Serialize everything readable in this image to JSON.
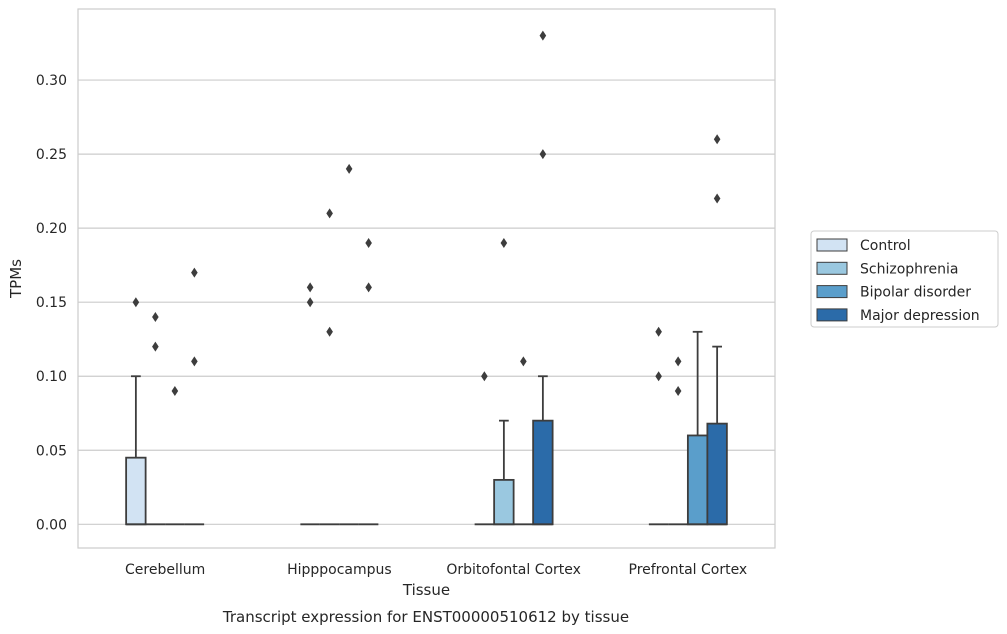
{
  "chart_data": {
    "type": "box",
    "title": "",
    "caption": "Transcript expression for ENST00000510612 by tissue",
    "xlabel": "Tissue",
    "ylabel": "TPMs",
    "ylim": [
      -0.016,
      0.348
    ],
    "yticks": [
      0.0,
      0.05,
      0.1,
      0.15,
      0.2,
      0.25,
      0.3
    ],
    "ytick_labels": [
      "0.00",
      "0.05",
      "0.10",
      "0.15",
      "0.20",
      "0.25",
      "0.30"
    ],
    "grid": "horizontal",
    "legend_position": "right",
    "categories": [
      "Cerebellum",
      "Hipppocampus",
      "Orbitofontal Cortex",
      "Prefrontal Cortex"
    ],
    "series": [
      {
        "name": "Control",
        "color": "#d2e3f3",
        "boxes": [
          {
            "q1": 0.0,
            "median": 0.0,
            "q3": 0.045,
            "whisker_low": 0.0,
            "whisker_high": 0.1,
            "outliers": [
              0.15
            ]
          },
          {
            "q1": 0.0,
            "median": 0.0,
            "q3": 0.0,
            "whisker_low": 0.0,
            "whisker_high": 0.0,
            "outliers": [
              0.16,
              0.15
            ]
          },
          {
            "q1": 0.0,
            "median": 0.0,
            "q3": 0.0,
            "whisker_low": 0.0,
            "whisker_high": 0.0,
            "outliers": [
              0.1
            ]
          },
          {
            "q1": 0.0,
            "median": 0.0,
            "q3": 0.0,
            "whisker_low": 0.0,
            "whisker_high": 0.0,
            "outliers": [
              0.13,
              0.1
            ]
          }
        ]
      },
      {
        "name": "Schizophrenia",
        "color": "#9ac8e0",
        "boxes": [
          {
            "q1": 0.0,
            "median": 0.0,
            "q3": 0.0,
            "whisker_low": 0.0,
            "whisker_high": 0.0,
            "outliers": [
              0.14,
              0.12
            ]
          },
          {
            "q1": 0.0,
            "median": 0.0,
            "q3": 0.0,
            "whisker_low": 0.0,
            "whisker_high": 0.0,
            "outliers": [
              0.21,
              0.13
            ]
          },
          {
            "q1": 0.0,
            "median": 0.0,
            "q3": 0.03,
            "whisker_low": 0.0,
            "whisker_high": 0.07,
            "outliers": [
              0.19
            ]
          },
          {
            "q1": 0.0,
            "median": 0.0,
            "q3": 0.0,
            "whisker_low": 0.0,
            "whisker_high": 0.0,
            "outliers": [
              0.11,
              0.09
            ]
          }
        ]
      },
      {
        "name": "Bipolar disorder",
        "color": "#5a9ecb",
        "boxes": [
          {
            "q1": 0.0,
            "median": 0.0,
            "q3": 0.0,
            "whisker_low": 0.0,
            "whisker_high": 0.0,
            "outliers": [
              0.09
            ]
          },
          {
            "q1": 0.0,
            "median": 0.0,
            "q3": 0.0,
            "whisker_low": 0.0,
            "whisker_high": 0.0,
            "outliers": [
              0.24
            ]
          },
          {
            "q1": 0.0,
            "median": 0.0,
            "q3": 0.0,
            "whisker_low": 0.0,
            "whisker_high": 0.0,
            "outliers": [
              0.11
            ]
          },
          {
            "q1": 0.0,
            "median": 0.0,
            "q3": 0.06,
            "whisker_low": 0.0,
            "whisker_high": 0.13,
            "outliers": []
          }
        ]
      },
      {
        "name": "Major depression",
        "color": "#2b6ba9",
        "boxes": [
          {
            "q1": 0.0,
            "median": 0.0,
            "q3": 0.0,
            "whisker_low": 0.0,
            "whisker_high": 0.0,
            "outliers": [
              0.17,
              0.11
            ]
          },
          {
            "q1": 0.0,
            "median": 0.0,
            "q3": 0.0,
            "whisker_low": 0.0,
            "whisker_high": 0.0,
            "outliers": [
              0.19,
              0.16
            ]
          },
          {
            "q1": 0.0,
            "median": 0.0,
            "q3": 0.07,
            "whisker_low": 0.0,
            "whisker_high": 0.1,
            "outliers": [
              0.33,
              0.25
            ]
          },
          {
            "q1": 0.0,
            "median": 0.0,
            "q3": 0.068,
            "whisker_low": 0.0,
            "whisker_high": 0.12,
            "outliers": [
              0.26,
              0.22
            ]
          }
        ]
      }
    ]
  }
}
